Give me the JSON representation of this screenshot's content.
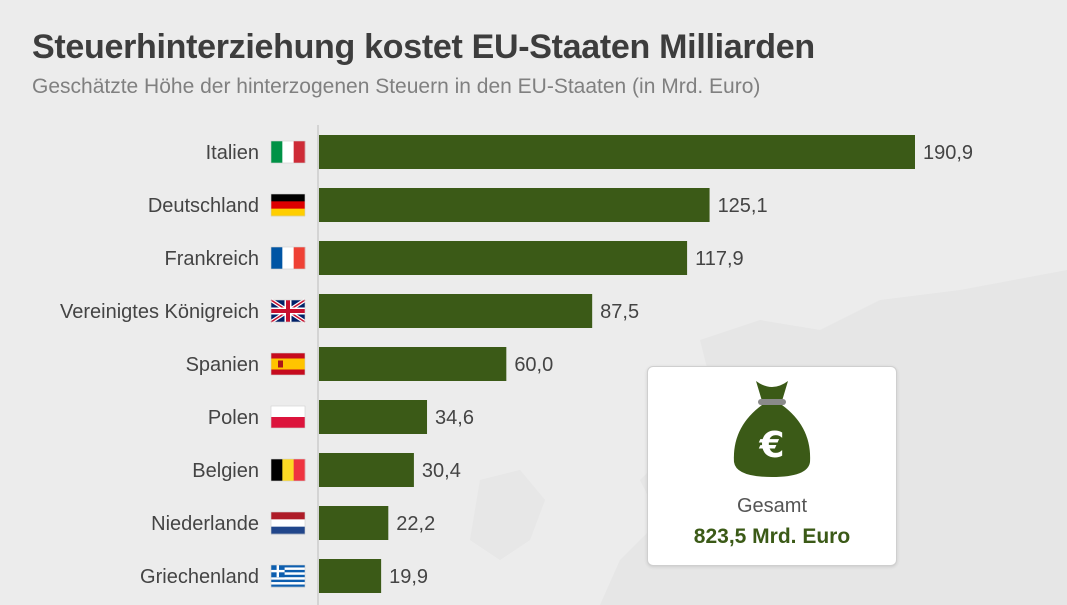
{
  "chart_data": {
    "type": "bar",
    "orientation": "horizontal",
    "title": "Steuerhinterziehung kostet EU-Staaten Milliarden",
    "subtitle": "Geschätzte Höhe der hinterzogenen Steuern in den EU-Staaten (in Mrd. Euro)",
    "categories": [
      "Italien",
      "Deutschland",
      "Frankreich",
      "Vereinigtes Königreich",
      "Spanien",
      "Polen",
      "Belgien",
      "Niederlande",
      "Griechenland"
    ],
    "values": [
      190.9,
      125.1,
      117.9,
      87.5,
      60.0,
      34.6,
      30.4,
      22.2,
      19.9
    ],
    "value_labels": [
      "190,9",
      "125,1",
      "117,9",
      "87,5",
      "60,0",
      "34,6",
      "30,4",
      "22,2",
      "19,9"
    ],
    "flags": [
      "italy-flag-icon",
      "germany-flag-icon",
      "france-flag-icon",
      "uk-flag-icon",
      "spain-flag-icon",
      "poland-flag-icon",
      "belgium-flag-icon",
      "netherlands-flag-icon",
      "greece-flag-icon"
    ],
    "bar_color": "#3b5a17",
    "xlim": [
      0,
      190.9
    ],
    "xlabel": "",
    "ylabel": ""
  },
  "summary": {
    "label": "Gesamt",
    "value": "823,5 Mrd. Euro",
    "icon": "money-bag-euro-icon"
  },
  "colors": {
    "accent": "#3b5a17",
    "background": "#ececec",
    "title": "#3d3d3d",
    "subtitle": "#808080"
  }
}
